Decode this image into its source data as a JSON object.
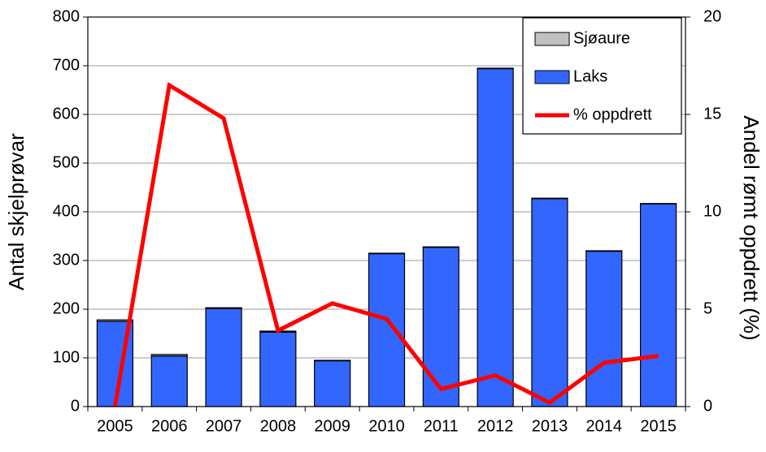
{
  "chart_data": {
    "type": "bar",
    "y_label": "Antal skjelprøvar",
    "y2_label": "Andel rømt oppdrett  (%)",
    "categories": [
      "2005",
      "2006",
      "2007",
      "2008",
      "2009",
      "2010",
      "2011",
      "2012",
      "2013",
      "2014",
      "2015"
    ],
    "series": [
      {
        "name": "Laks",
        "type": "bar",
        "color": "#3366ff",
        "values": [
          175,
          104,
          201,
          153,
          94,
          314,
          327,
          694,
          427,
          319,
          416
        ]
      },
      {
        "name": "Sjøaure",
        "type": "bar",
        "color": "#c0c0c0",
        "values": [
          3,
          3,
          2,
          2,
          1,
          1,
          1,
          1,
          1,
          1,
          1
        ]
      },
      {
        "name": "% oppdrett",
        "type": "line",
        "axis": "y2",
        "color": "#ff0000",
        "values": [
          0,
          16.5,
          14.8,
          3.9,
          5.3,
          4.5,
          0.9,
          1.6,
          0.2,
          2.25,
          2.6
        ]
      }
    ],
    "legend_order": [
      "Sjøaure",
      "Laks",
      "% oppdrett"
    ],
    "ylim": [
      0,
      800
    ],
    "yticks": [
      0,
      100,
      200,
      300,
      400,
      500,
      600,
      700,
      800
    ],
    "y2lim": [
      0,
      20
    ],
    "y2ticks": [
      0,
      5,
      10,
      15,
      20
    ],
    "grid": true,
    "legend": "top-right"
  }
}
